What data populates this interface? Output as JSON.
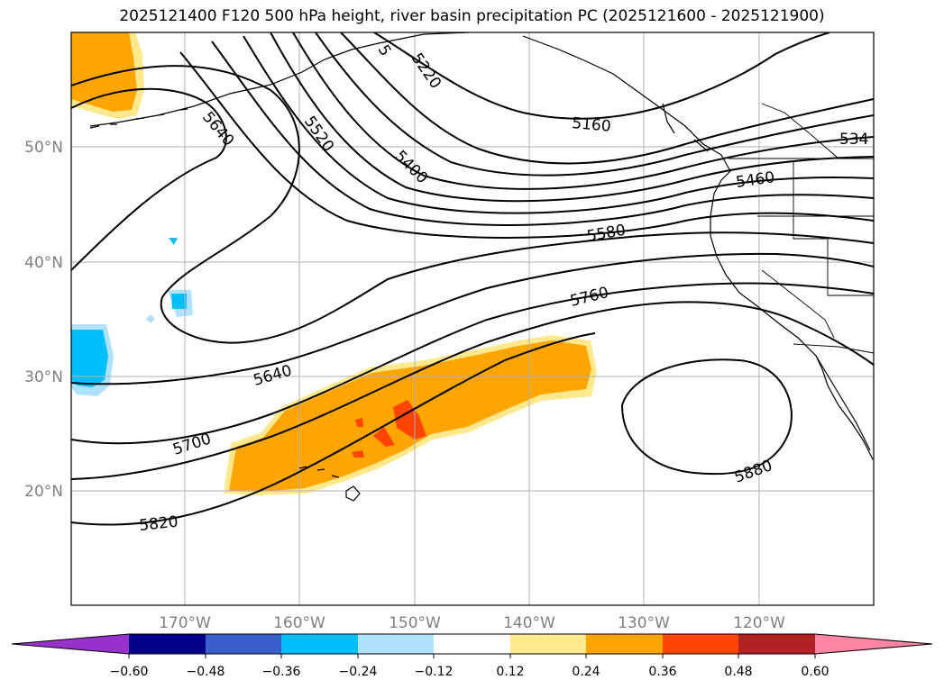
{
  "title": "2025121400 F120 500 hPa height, river basin precipitation PC (2025121600 - 2025121900)",
  "map": {
    "latitude_labels": [
      "50°N",
      "40°N",
      "30°N",
      "20°N"
    ],
    "longitude_labels": [
      "170°W",
      "160°W",
      "150°W",
      "140°W",
      "130°W",
      "120°W"
    ],
    "contour_labels": [
      "5640",
      "5520",
      "5220",
      "5400",
      "5160",
      "534",
      "5460",
      "5580",
      "5760",
      "5640",
      "5700",
      "5820",
      "5880",
      "5"
    ]
  },
  "colorbar": {
    "ticks": [
      "−0.60",
      "−0.48",
      "−0.36",
      "−0.24",
      "−0.12",
      "0.12",
      "0.24",
      "0.36",
      "0.48",
      "0.60"
    ],
    "colors": [
      "#9932cc",
      "#00008b",
      "#3a5fcd",
      "#00bfff",
      "#b0e2ff",
      "#ffffff",
      "#ffe98c",
      "#ffa500",
      "#ff4500",
      "#b22222",
      "#ff85a5"
    ]
  }
}
